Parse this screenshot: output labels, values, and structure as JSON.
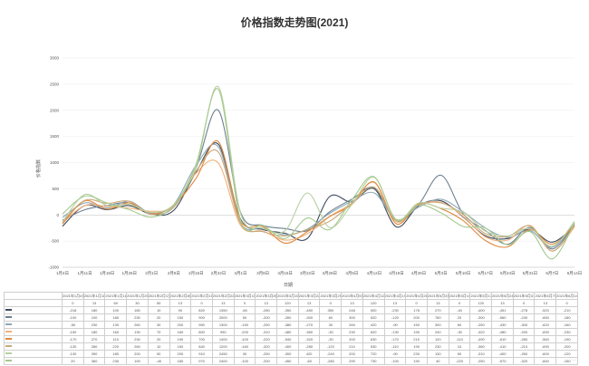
{
  "chart_data": {
    "type": "line",
    "title": "价格指数走势图(2021)",
    "xlabel": "日期",
    "ylabel": "价格指数",
    "ylim": [
      -1000,
      3000
    ],
    "yticks": [
      "3000",
      "2500",
      "2000",
      "1500",
      "1000",
      "500",
      "0",
      "-500",
      "-1000"
    ],
    "grid": true,
    "legend": "table-bottom",
    "categories": [
      "1月4日",
      "1月11日",
      "1月18日",
      "1月25日",
      "2月1日",
      "2月8日",
      "2月15日",
      "2月22日",
      "3月1日",
      "3月8日",
      "3月15日",
      "3月22日",
      "3月29日",
      "4月5日",
      "4月12日",
      "4月19日",
      "4月26日",
      "5月3日",
      "5月10日",
      "5月17日",
      "5月24日",
      "5月31日",
      "6月7日",
      "6月14日"
    ],
    "series": [
      {
        "name": "",
        "color": "#3d4a5c",
        "values": [
          -218,
          180,
          100,
          180,
          10,
          90,
          820,
          1350,
          -80,
          -280,
          -350,
          -450,
          350,
          248,
          500,
          -230,
          178,
          270,
          -40,
          -400,
          -451,
          -278,
          -520,
          -210
        ]
      },
      {
        "name": "",
        "color": "#6b7f8f",
        "values": [
          -100,
          100,
          180,
          230,
          20,
          150,
          900,
          2000,
          50,
          -200,
          -260,
          -300,
          60,
          300,
          520,
          -120,
          200,
          760,
          20,
          -300,
          -560,
          -240,
          -650,
          -180
        ]
      },
      {
        "name": "",
        "color": "#8fa7b6",
        "values": [
          -50,
          230,
          130,
          260,
          30,
          200,
          950,
          1300,
          -150,
          -250,
          -380,
          -270,
          30,
          260,
          420,
          -90,
          150,
          300,
          60,
          -250,
          -430,
          -300,
          -620,
          -160
        ]
      },
      {
        "name": "",
        "color": "#f2b27a",
        "values": [
          -150,
          180,
          160,
          130,
          70,
          160,
          800,
          990,
          -200,
          -310,
          -480,
          -360,
          -30,
          230,
          620,
          -130,
          190,
          240,
          -30,
          -420,
          -480,
          -200,
          -690,
          -230
        ]
      },
      {
        "name": "",
        "color": "#e0883e",
        "values": [
          -170,
          270,
          110,
          230,
          20,
          190,
          700,
          1400,
          -100,
          -220,
          -540,
          -320,
          -30,
          200,
          630,
          -170,
          210,
          120,
          -110,
          -490,
          -610,
          -280,
          -560,
          -190
        ]
      },
      {
        "name": "",
        "color": "#c9a97a",
        "values": [
          -130,
          280,
          220,
          260,
          10,
          150,
          840,
          1200,
          -160,
          -320,
          -400,
          -280,
          -120,
          210,
          530,
          -110,
          190,
          230,
          10,
          -360,
          -410,
          -210,
          -690,
          -200
        ]
      },
      {
        "name": "",
        "color": "#b7cfa0",
        "values": [
          -130,
          390,
          180,
          200,
          50,
          200,
          910,
          2450,
          30,
          -250,
          -300,
          420,
          -240,
          200,
          720,
          -90,
          230,
          130,
          50,
          -310,
          -400,
          -260,
          -600,
          -120
        ]
      },
      {
        "name": "",
        "color": "#a4c98e",
        "values": [
          20,
          360,
          230,
          100,
          -40,
          180,
          970,
          2400,
          -100,
          -200,
          -450,
          -60,
          -280,
          290,
          730,
          -100,
          190,
          40,
          -220,
          -250,
          -570,
          -320,
          -840,
          -150
        ]
      }
    ],
    "table_header": [
      "2021年1月4日",
      "2021年1月11日",
      "2021年1月18日",
      "2021年1月25日",
      "2021年2月1日",
      "2021年2月8日",
      "2021年2月15日",
      "2021年2月22日",
      "2021年3月1日",
      "2021年3月8日",
      "2021年3月15日",
      "2021年3月22日",
      "2021年3月29日",
      "2021年4月5日",
      "2021年4月12日",
      "2021年4月19日",
      "2021年4月26日",
      "2021年5月3日",
      "2021年5月10日",
      "2021年5月17日",
      "2021年5月24日",
      "2021年5月31日",
      "2021年6月7日",
      "2021年6月14日"
    ],
    "table_first_row": [
      "0",
      "13",
      "60",
      "30",
      "50",
      "13",
      "0",
      "13",
      "0",
      "13",
      "120",
      "13",
      "0",
      "13",
      "120",
      "13",
      "0",
      "13",
      "0",
      "120",
      "13",
      "0",
      "13",
      "0"
    ]
  },
  "watermark": "…"
}
